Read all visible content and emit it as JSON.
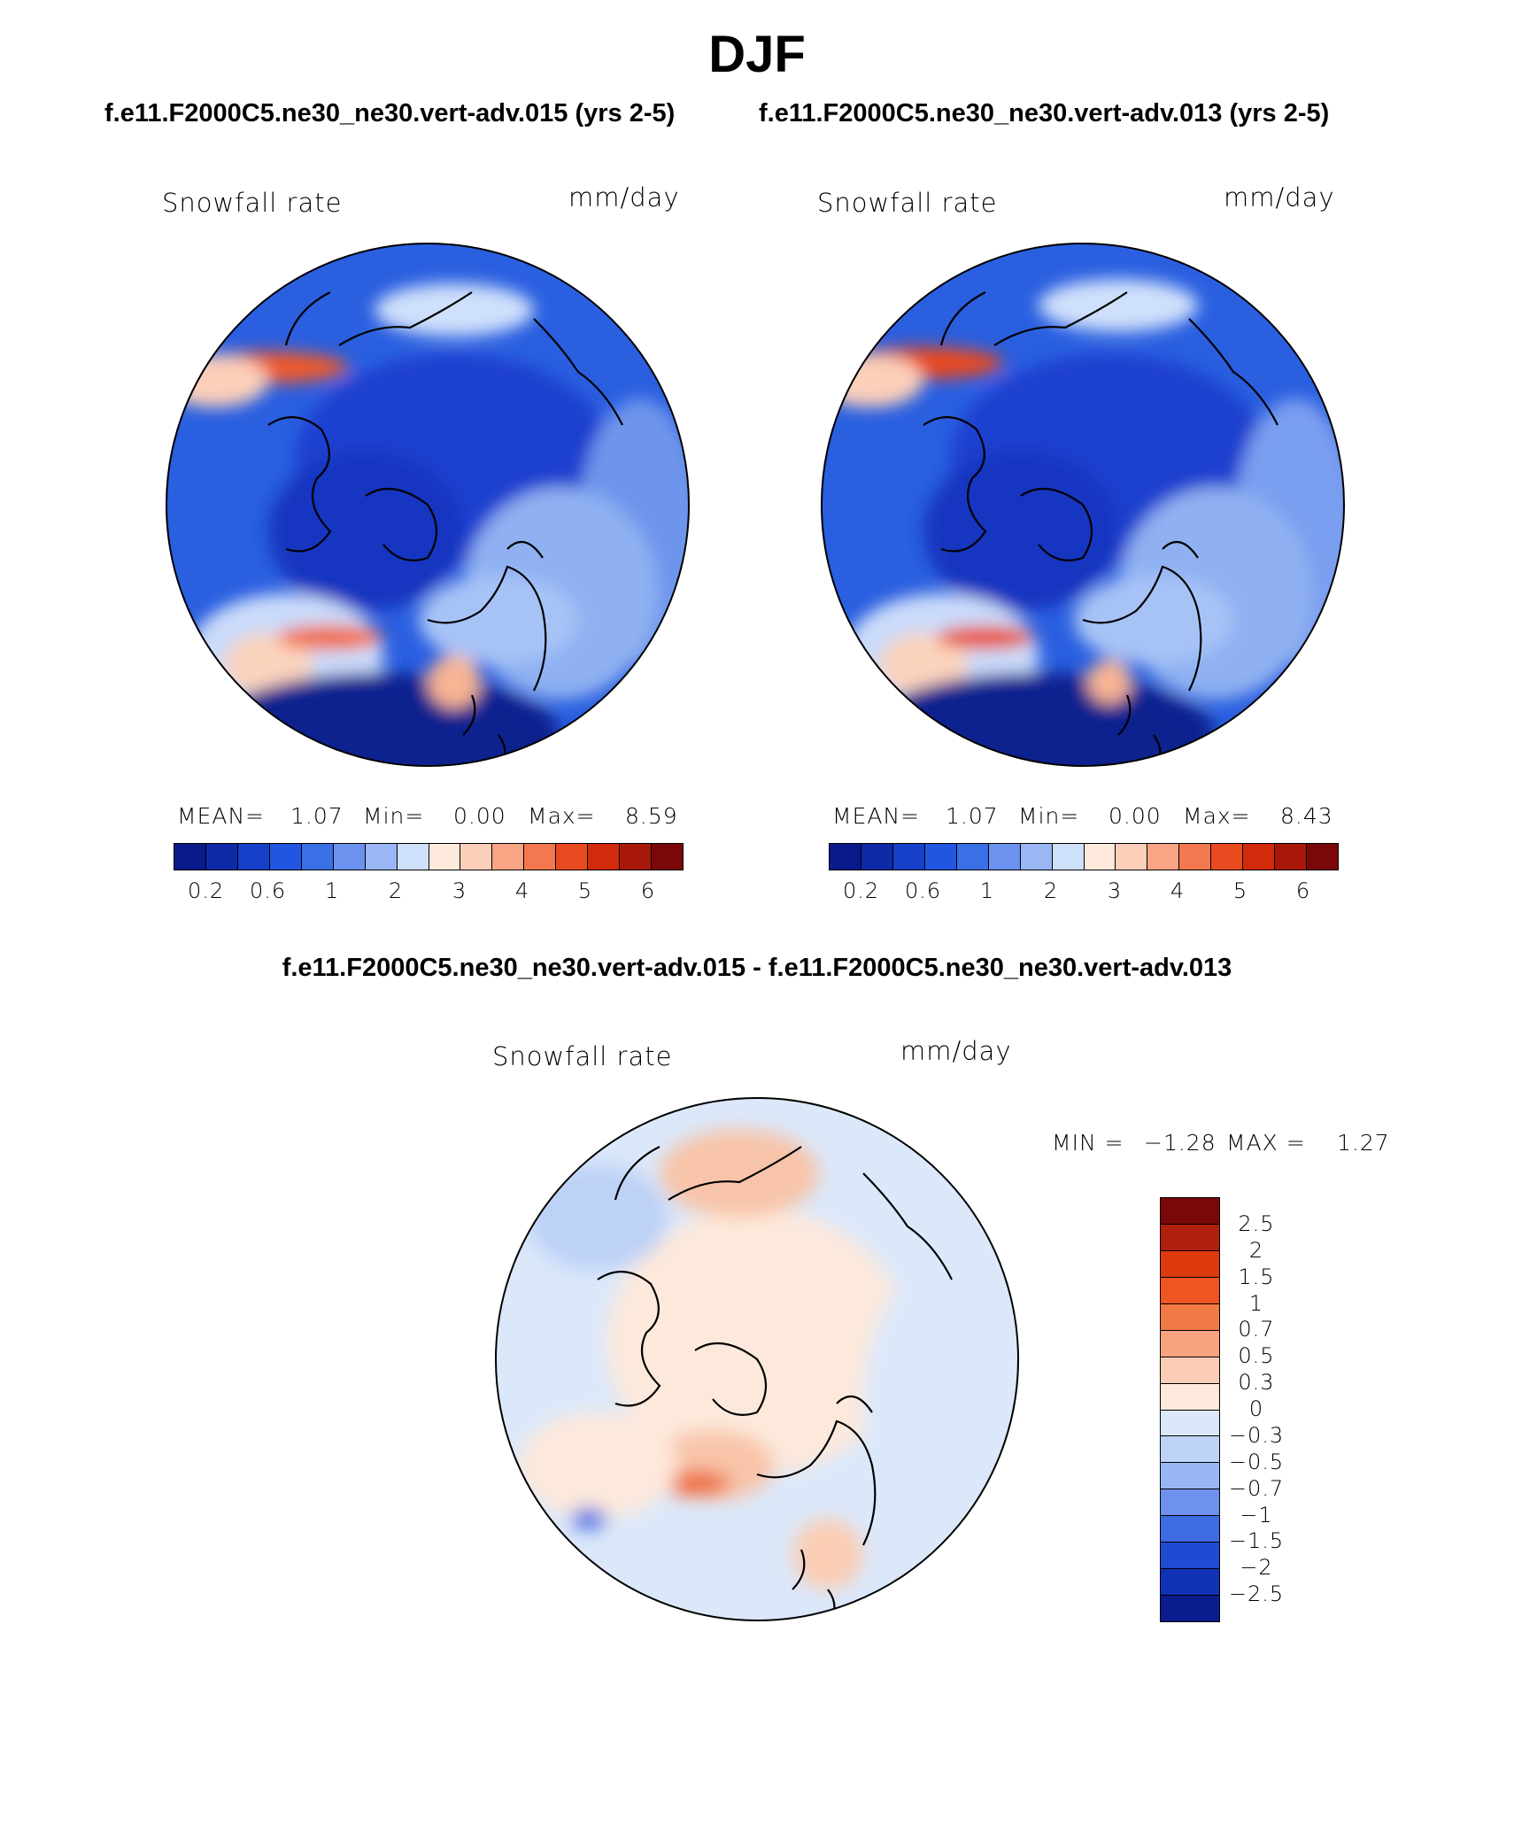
{
  "page": {
    "title": "DJF",
    "case_a": "f.e11.F2000C5.ne30_ne30.vert-adv.015 (yrs 2-5)",
    "case_b": "f.e11.F2000C5.ne30_ne30.vert-adv.013 (yrs 2-5)",
    "diff_title": "f.e11.F2000C5.ne30_ne30.vert-adv.015 - f.e11.F2000C5.ne30_ne30.vert-adv.013"
  },
  "panels": [
    {
      "variable": "Snowfall rate",
      "units": "mm/day",
      "mean_label": "MEAN=",
      "mean_value": "1.07",
      "min_label": "Min=",
      "min_value": "0.00",
      "max_label": "Max=",
      "max_value": "8.59"
    },
    {
      "variable": "Snowfall rate",
      "units": "mm/day",
      "mean_label": "MEAN=",
      "mean_value": "1.07",
      "min_label": "Min=",
      "min_value": "0.00",
      "max_label": "Max=",
      "max_value": "8.43"
    }
  ],
  "diff_panel": {
    "variable": "Snowfall rate",
    "units": "mm/day",
    "min_label": "MIN =",
    "min_value": "−1.28",
    "max_label": "MAX =",
    "max_value": "1.27"
  },
  "colorbar_main": {
    "colors": [
      "#0a1a8c",
      "#0f2aa6",
      "#1740c8",
      "#2156e0",
      "#3b6fe6",
      "#6a92ee",
      "#9ab6f5",
      "#cfe0fb",
      "#fde9dc",
      "#fbcfb9",
      "#f7a585",
      "#f1784f",
      "#ea4a1f",
      "#d22a0c",
      "#a8180a",
      "#7a0808"
    ],
    "tick_labels": [
      "0.2",
      "0.6",
      "1",
      "2",
      "3",
      "4",
      "5",
      "6"
    ]
  },
  "colorbar_diff": {
    "colors": [
      "#7a0808",
      "#b01f0b",
      "#dd3a10",
      "#ee5522",
      "#f07a45",
      "#f6a37f",
      "#fbcdb4",
      "#fde9dc",
      "#dbe8fa",
      "#bdd2f7",
      "#98b6f2",
      "#6e92ec",
      "#3f6be3",
      "#1e4bd2",
      "#1032b4",
      "#0a1c8e"
    ],
    "tick_labels": [
      "2.5",
      "2",
      "1.5",
      "1",
      "0.7",
      "0.5",
      "0.3",
      "0",
      "−0.3",
      "−0.5",
      "−0.7",
      "−1",
      "−1.5",
      "−2",
      "−2.5"
    ]
  }
}
